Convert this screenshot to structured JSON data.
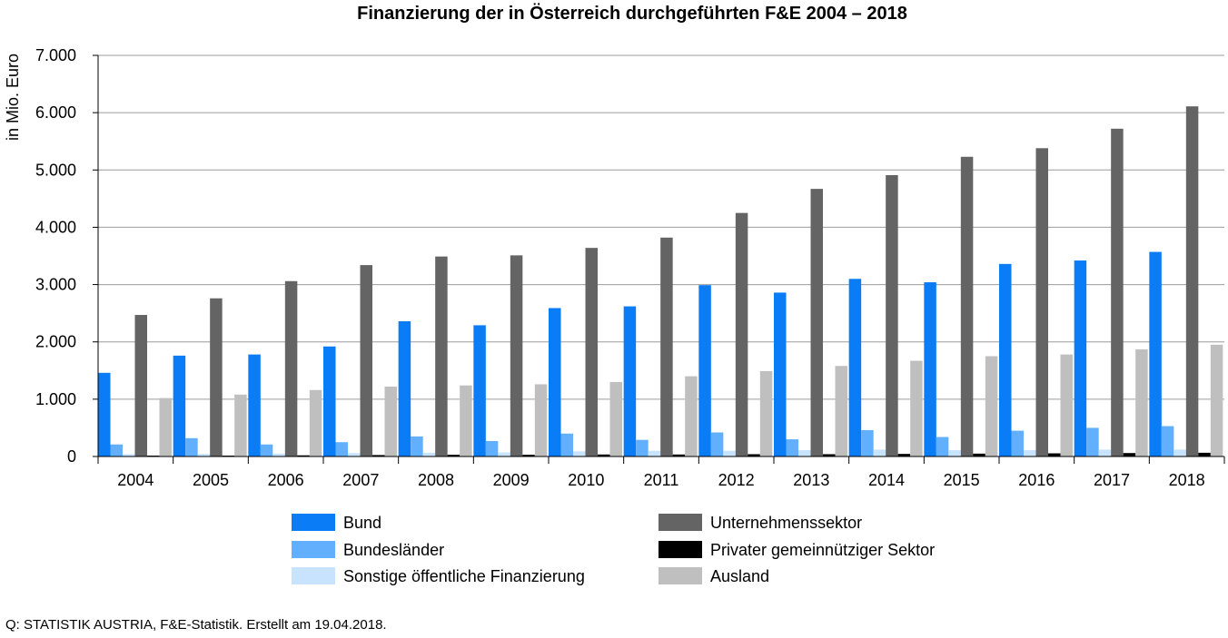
{
  "chart_data": {
    "type": "bar",
    "title": "Finanzierung der in Österreich durchgeführten F&E 2004 – 2018",
    "xlabel": "",
    "ylabel": "in Mio. Euro",
    "ylim": [
      0,
      7000
    ],
    "yticks": [
      0,
      1000,
      2000,
      3000,
      4000,
      5000,
      6000,
      7000
    ],
    "ytick_labels": [
      "0",
      "1.000",
      "2.000",
      "3.000",
      "4.000",
      "5.000",
      "6.000",
      "7.000"
    ],
    "grid": true,
    "legend_position": "bottom",
    "categories": [
      "2004",
      "2005",
      "2006",
      "2007",
      "2008",
      "2009",
      "2010",
      "2011",
      "2012",
      "2013",
      "2014",
      "2015",
      "2016",
      "2017",
      "2018"
    ],
    "series": [
      {
        "name": "Bund",
        "color": "#0a7df6",
        "values": [
          1460,
          1760,
          1780,
          1920,
          2360,
          2290,
          2590,
          2620,
          2990,
          2860,
          3100,
          3040,
          3360,
          3420,
          3570
        ]
      },
      {
        "name": "Bundesländer",
        "color": "#62b0fd",
        "values": [
          210,
          320,
          210,
          250,
          350,
          270,
          400,
          290,
          420,
          300,
          460,
          340,
          450,
          500,
          530
        ]
      },
      {
        "name": "Sonstige öffentliche Finanzierung",
        "color": "#c8e3fd",
        "values": [
          40,
          45,
          50,
          60,
          65,
          70,
          90,
          100,
          100,
          110,
          120,
          110,
          110,
          120,
          120
        ]
      },
      {
        "name": "Unternehmenssektor",
        "color": "#646464",
        "values": [
          2470,
          2760,
          3060,
          3340,
          3490,
          3510,
          3640,
          3820,
          4250,
          4670,
          4910,
          5230,
          5380,
          5720,
          6110
        ]
      },
      {
        "name": "Privater gemeinnütziger Sektor",
        "color": "#000000",
        "values": [
          15,
          15,
          20,
          25,
          30,
          30,
          35,
          35,
          40,
          40,
          45,
          50,
          55,
          60,
          65
        ]
      },
      {
        "name": "Ausland",
        "color": "#bfbfbf",
        "values": [
          1020,
          1080,
          1160,
          1220,
          1240,
          1260,
          1300,
          1400,
          1490,
          1580,
          1670,
          1750,
          1780,
          1870,
          1950
        ]
      }
    ]
  },
  "footer": {
    "source": "Q: STATISTIK AUSTRIA, F&E-Statistik. Erstellt am 19.04.2018."
  }
}
